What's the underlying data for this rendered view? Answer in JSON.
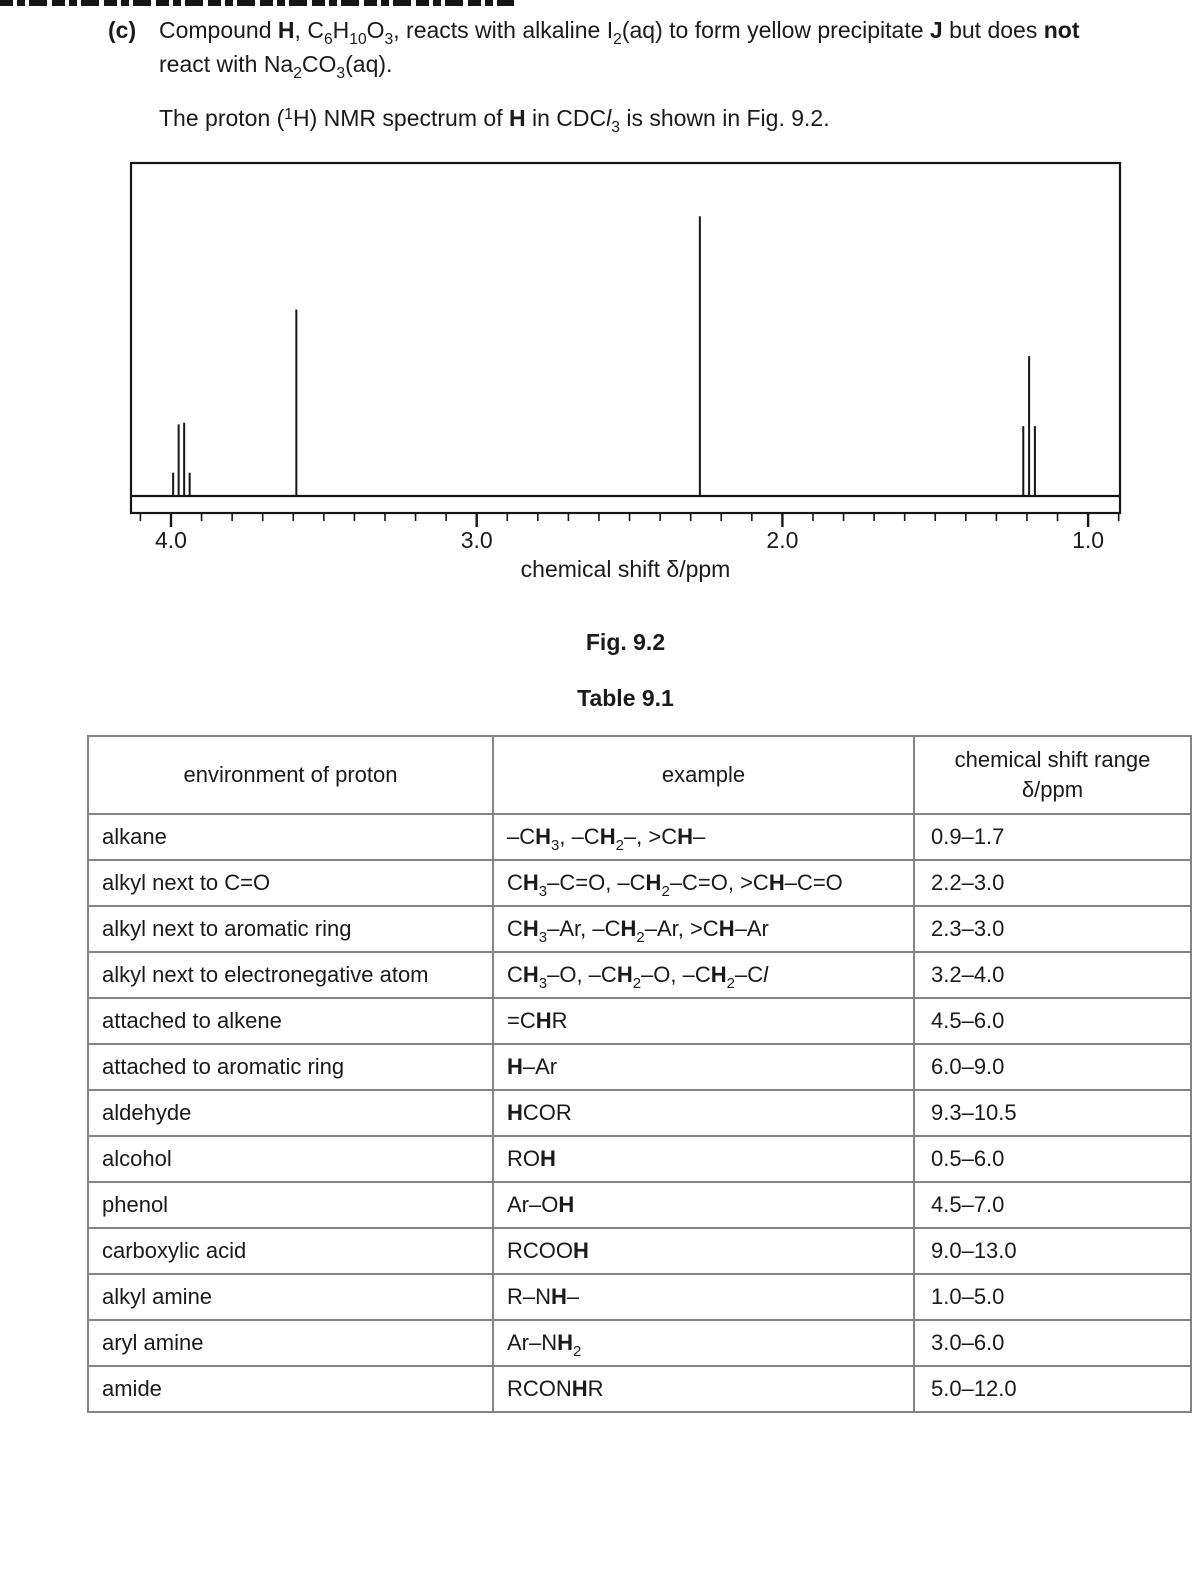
{
  "page": {
    "background": "#ffffff",
    "text_color": "#1a1a1a",
    "border_gray": "#848484",
    "ink": "#161616"
  },
  "question": {
    "part_label": "(c)",
    "line1": "Compound <b>H</b>, C<sub>6</sub>H<sub>10</sub>O<sub>3</sub>, reacts with alkaline I<sub>2</sub>(aq) to form yellow precipitate <b>J</b> but does <b>not</b>",
    "line2": "react with Na<sub>2</sub>CO<sub>3</sub>(aq).",
    "line3": "The proton (<sup>1</sup>H) NMR spectrum of <b>H</b> in CDC<i>l</i><sub>3</sub> is shown in Fig. 9.2."
  },
  "figure": {
    "caption": "Fig. 9.2"
  },
  "chart_data": {
    "type": "line",
    "subtype": "1H-NMR-spectrum",
    "title": "Fig. 9.2",
    "xlabel": "chemical shift δ/ppm",
    "ylabel": "",
    "x_axis": {
      "min": 0.9,
      "max": 4.13,
      "reversed": true,
      "major_ticks": [
        4.0,
        3.0,
        2.0,
        1.0
      ],
      "minor_tick_step": 0.1,
      "tick_label_format": "one-decimal"
    },
    "ylim": [
      0,
      100
    ],
    "grid": false,
    "peaks": [
      {
        "multiplet": "quartet",
        "center_ppm": 3.97,
        "lines": [
          {
            "ppm": 3.993,
            "height_pct": 7
          },
          {
            "ppm": 3.975,
            "height_pct": 21.5
          },
          {
            "ppm": 3.957,
            "height_pct": 22
          },
          {
            "ppm": 3.939,
            "height_pct": 7
          }
        ]
      },
      {
        "multiplet": "singlet",
        "center_ppm": 3.59,
        "lines": [
          {
            "ppm": 3.59,
            "height_pct": 56
          }
        ]
      },
      {
        "multiplet": "singlet",
        "center_ppm": 2.27,
        "lines": [
          {
            "ppm": 2.27,
            "height_pct": 84
          }
        ]
      },
      {
        "multiplet": "triplet",
        "center_ppm": 1.19,
        "lines": [
          {
            "ppm": 1.212,
            "height_pct": 21
          },
          {
            "ppm": 1.193,
            "height_pct": 42
          },
          {
            "ppm": 1.174,
            "height_pct": 21
          }
        ]
      }
    ]
  },
  "table": {
    "caption": "Table 9.1",
    "headers": {
      "col1": "environment of proton",
      "col2": "example",
      "col3_line1": "chemical shift range",
      "col3_line2": "δ/ppm"
    },
    "rows": [
      {
        "environment": "alkane",
        "example": "–C<b>H</b><sub>3</sub>, –C<b>H</b><sub>2</sub>–, &gt;C<b>H</b>–",
        "range": "0.9–1.7"
      },
      {
        "environment": "alkyl next to C=O",
        "example": "C<b>H</b><sub>3</sub>–C=O, –C<b>H</b><sub>2</sub>–C=O, &gt;C<b>H</b>–C=O",
        "range": "2.2–3.0"
      },
      {
        "environment": "alkyl next to aromatic ring",
        "example": "C<b>H</b><sub>3</sub>–Ar, –C<b>H</b><sub>2</sub>–Ar, &gt;C<b>H</b>–Ar",
        "range": "2.3–3.0"
      },
      {
        "environment": "alkyl next to electronegative atom",
        "example": "C<b>H</b><sub>3</sub>–O, –C<b>H</b><sub>2</sub>–O, –C<b>H</b><sub>2</sub>–C<i>l</i>",
        "range": "3.2–4.0"
      },
      {
        "environment": "attached to alkene",
        "example": "=C<b>H</b>R",
        "range": "4.5–6.0"
      },
      {
        "environment": "attached to aromatic ring",
        "example": "<b>H</b>–Ar",
        "range": "6.0–9.0"
      },
      {
        "environment": "aldehyde",
        "example": "<b>H</b>COR",
        "range": "9.3–10.5"
      },
      {
        "environment": "alcohol",
        "example": "RO<b>H</b>",
        "range": "0.5–6.0"
      },
      {
        "environment": "phenol",
        "example": "Ar–O<b>H</b>",
        "range": "4.5–7.0"
      },
      {
        "environment": "carboxylic acid",
        "example": "RCOO<b>H</b>",
        "range": "9.0–13.0"
      },
      {
        "environment": "alkyl amine",
        "example": "R–N<b>H</b>–",
        "range": "1.0–5.0"
      },
      {
        "environment": "aryl amine",
        "example": "Ar–N<b>H</b><sub>2</sub>",
        "range": "3.0–6.0"
      },
      {
        "environment": "amide",
        "example": "RCON<b>H</b>R",
        "range": "5.0–12.0"
      }
    ]
  }
}
